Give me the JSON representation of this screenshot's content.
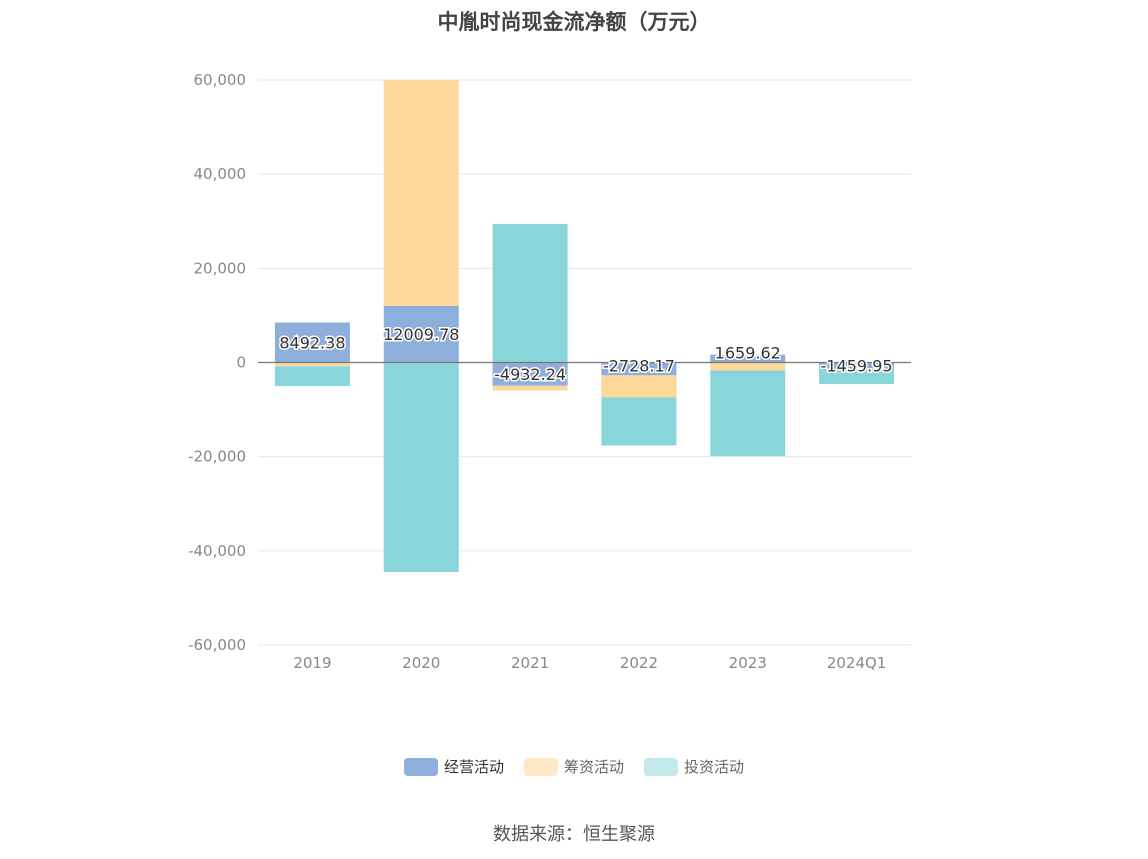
{
  "chart_data": {
    "type": "bar",
    "stacked": true,
    "title": "中胤时尚现金流净额（万元）",
    "categories": [
      "2019",
      "2020",
      "2021",
      "2022",
      "2023",
      "2024Q1"
    ],
    "series": [
      {
        "name": "经营活动",
        "color": "#8eaedb",
        "values": [
          8492.38,
          12009.78,
          -4932.24,
          -2728.17,
          1659.62,
          -1459.95
        ]
      },
      {
        "name": "筹资活动",
        "color": "#fed89b",
        "values": [
          -800,
          47990,
          -1000,
          -4700,
          -1700,
          0
        ]
      },
      {
        "name": "投资活动",
        "color": "#88d6d9",
        "values": [
          -4200,
          -44500,
          29400,
          -10200,
          -18200,
          -3100
        ]
      }
    ],
    "data_labels": [
      "8492.38",
      "12009.78",
      "-4932.24",
      "-2728.17",
      "1659.62",
      "-1459.95"
    ],
    "ylim": [
      -60000,
      60000
    ],
    "yticks": [
      60000,
      40000,
      20000,
      0,
      -20000,
      -40000,
      -60000
    ],
    "ytick_labels": [
      "60,000",
      "40,000",
      "20,000",
      "0",
      "-20,000",
      "-40,000",
      "-60,000"
    ],
    "grid": true,
    "legend_position": "bottom"
  },
  "legend": {
    "items": [
      {
        "label": "经营活动",
        "color": "#8eaedb"
      },
      {
        "label": "筹资活动",
        "color": "#fee8c7"
      },
      {
        "label": "投资活动",
        "color": "#c4e9ea"
      }
    ]
  },
  "source": "数据来源：恒生聚源"
}
